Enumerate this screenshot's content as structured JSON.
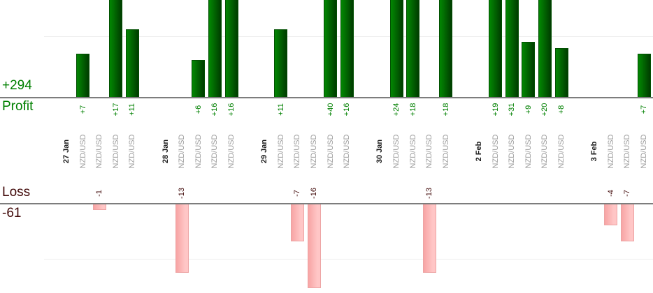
{
  "chart_data": {
    "type": "bar",
    "title": "",
    "profit": {
      "label": "Profit",
      "total_label": "+294",
      "total": 294,
      "gridline_value": 10
    },
    "loss": {
      "label": "Loss",
      "total_label": "-61",
      "total": -61,
      "gridline_value": -10
    },
    "x_axis": {
      "date_labels": [
        "27 Jan",
        "28 Jan",
        "29 Jan",
        "30 Jan",
        "2 Feb",
        "3 Feb"
      ],
      "symbol": "NZD/USD"
    },
    "legend_position": "none",
    "grid": "faint single gridline at +10 and -10",
    "groups": [
      {
        "date": "27 Jan",
        "trades": [
          {
            "symbol": "NZD/USD",
            "value": 7,
            "label": "+7"
          },
          {
            "symbol": "NZD/USD",
            "value": -1,
            "label": "-1"
          },
          {
            "symbol": "NZD/USD",
            "value": 17,
            "label": "+17"
          },
          {
            "symbol": "NZD/USD",
            "value": 11,
            "label": "+11"
          }
        ]
      },
      {
        "date": "28 Jan",
        "trades": [
          {
            "symbol": "NZD/USD",
            "value": -13,
            "label": "-13"
          },
          {
            "symbol": "NZD/USD",
            "value": 6,
            "label": "+6"
          },
          {
            "symbol": "NZD/USD",
            "value": 16,
            "label": "+16"
          },
          {
            "symbol": "NZD/USD",
            "value": 16,
            "label": "+16"
          }
        ]
      },
      {
        "date": "29 Jan",
        "trades": [
          {
            "symbol": "NZD/USD",
            "value": 11,
            "label": "+11"
          },
          {
            "symbol": "NZD/USD",
            "value": -7,
            "label": "-7"
          },
          {
            "symbol": "NZD/USD",
            "value": -16,
            "label": "-16"
          },
          {
            "symbol": "NZD/USD",
            "value": 40,
            "label": "+40"
          },
          {
            "symbol": "NZD/USD",
            "value": 16,
            "label": "+16"
          }
        ]
      },
      {
        "date": "30 Jan",
        "trades": [
          {
            "symbol": "NZD/USD",
            "value": 24,
            "label": "+24"
          },
          {
            "symbol": "NZD/USD",
            "value": 18,
            "label": "+18"
          },
          {
            "symbol": "NZD/USD",
            "value": -13,
            "label": "-13"
          },
          {
            "symbol": "NZD/USD",
            "value": 18,
            "label": "+18"
          }
        ]
      },
      {
        "date": "2 Feb",
        "trades": [
          {
            "symbol": "NZD/USD",
            "value": 19,
            "label": "+19"
          },
          {
            "symbol": "NZD/USD",
            "value": 31,
            "label": "+31"
          },
          {
            "symbol": "NZD/USD",
            "value": 9,
            "label": "+9"
          },
          {
            "symbol": "NZD/USD",
            "value": 20,
            "label": "+20"
          },
          {
            "symbol": "NZD/USD",
            "value": 8,
            "label": "+8"
          }
        ]
      },
      {
        "date": "3 Feb",
        "trades": [
          {
            "symbol": "NZD/USD",
            "value": -4,
            "label": "-4"
          },
          {
            "symbol": "NZD/USD",
            "value": -7,
            "label": "-7"
          },
          {
            "symbol": "NZD/USD",
            "value": 7,
            "label": "+7"
          }
        ]
      }
    ],
    "colors": {
      "profit_text": "#008000",
      "profit_bar_light": "#028202",
      "profit_bar_dark": "#003c00",
      "loss_text": "#400808",
      "loss_value_text": "#400808",
      "loss_bar_dark": "#f7a4a4",
      "loss_bar_light": "#ffc6c6",
      "axis_line": "#7d7d7d",
      "gridline": "#ededed",
      "symbol_label": "#9c9c9c",
      "date_label": "#1a1a1a"
    }
  }
}
